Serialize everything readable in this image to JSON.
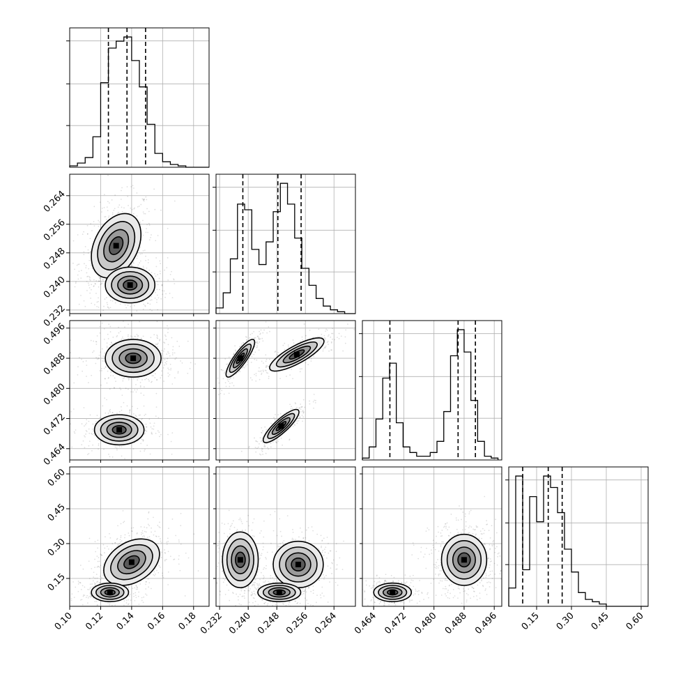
{
  "chart_data": {
    "type": "scatter",
    "kind": "corner-plot",
    "grid": true,
    "params": [
      {
        "id": "p0",
        "range": [
          0.1,
          0.19
        ],
        "ticks": [
          0.1,
          0.12,
          0.14,
          0.16,
          0.18
        ],
        "tick_labels": [
          "0.10",
          "0.12",
          "0.14",
          "0.16",
          "0.18"
        ],
        "quantiles": [
          0.125,
          0.137,
          0.149
        ]
      },
      {
        "id": "p1",
        "range": [
          0.231,
          0.27
        ],
        "ticks": [
          0.232,
          0.24,
          0.248,
          0.256,
          0.264
        ],
        "tick_labels": [
          "0.232",
          "0.240",
          "0.248",
          "0.256",
          "0.264"
        ],
        "quantiles": [
          0.2385,
          0.2483,
          0.2548
        ]
      },
      {
        "id": "p2",
        "range": [
          0.461,
          0.498
        ],
        "ticks": [
          0.464,
          0.472,
          0.48,
          0.488,
          0.496
        ],
        "tick_labels": [
          "0.464",
          "0.472",
          "0.480",
          "0.488",
          "0.496"
        ],
        "quantiles": [
          0.4683,
          0.4864,
          0.491
        ]
      },
      {
        "id": "p3",
        "range": [
          0.03,
          0.63
        ],
        "ticks": [
          0.15,
          0.3,
          0.45,
          0.6
        ],
        "tick_labels": [
          "0.15",
          "0.30",
          "0.45",
          "0.60"
        ],
        "quantiles": [
          0.09,
          0.2,
          0.26
        ]
      }
    ],
    "histograms": [
      {
        "param": 0,
        "bins": [
          0.1,
          0.105,
          0.11,
          0.115,
          0.12,
          0.125,
          0.13,
          0.135,
          0.14,
          0.145,
          0.15,
          0.155,
          0.16,
          0.165,
          0.17,
          0.175,
          0.18,
          0.185,
          0.19
        ],
        "counts": [
          1,
          3,
          7,
          22,
          61,
          86,
          91,
          94,
          77,
          58,
          31,
          10,
          4,
          2,
          1,
          0,
          0,
          0
        ]
      },
      {
        "param": 1,
        "bins": [
          0.231,
          0.233,
          0.235,
          0.237,
          0.239,
          0.241,
          0.243,
          0.245,
          0.247,
          0.249,
          0.251,
          0.253,
          0.255,
          0.257,
          0.259,
          0.261,
          0.263,
          0.265,
          0.267,
          0.269,
          0.27
        ],
        "counts": [
          3,
          11,
          29,
          58,
          55,
          34,
          26,
          38,
          54,
          69,
          58,
          40,
          24,
          15,
          8,
          4,
          2,
          1,
          0,
          0
        ]
      },
      {
        "param": 2,
        "bins": [
          0.461,
          0.4628,
          0.4646,
          0.4664,
          0.4682,
          0.47,
          0.4718,
          0.4736,
          0.4754,
          0.4772,
          0.479,
          0.4808,
          0.4826,
          0.4844,
          0.4862,
          0.488,
          0.4898,
          0.4916,
          0.4934,
          0.4952,
          0.497
        ],
        "counts": [
          1,
          7,
          22,
          44,
          52,
          20,
          7,
          4,
          2,
          2,
          4,
          10,
          26,
          56,
          70,
          58,
          32,
          10,
          2,
          1
        ]
      },
      {
        "param": 3,
        "bins": [
          0.03,
          0.06,
          0.09,
          0.12,
          0.15,
          0.18,
          0.21,
          0.24,
          0.27,
          0.3,
          0.33,
          0.36,
          0.39,
          0.42,
          0.45,
          0.48,
          0.51,
          0.54,
          0.57,
          0.6,
          0.63
        ],
        "counts": [
          8,
          57,
          16,
          48,
          37,
          57,
          52,
          41,
          25,
          15,
          6,
          3,
          2,
          1,
          0,
          0,
          0,
          0,
          0,
          0
        ]
      }
    ],
    "pairs": [
      {
        "x": 0,
        "y": 1,
        "modes": [
          {
            "mx": 0.13,
            "my": 0.25,
            "sx": 0.008,
            "sy": 0.0045,
            "rho": 0.35,
            "w": 0.6
          },
          {
            "mx": 0.139,
            "my": 0.239,
            "sx": 0.008,
            "sy": 0.0025,
            "rho": 0.0,
            "w": 0.4
          }
        ]
      },
      {
        "x": 0,
        "y": 2,
        "modes": [
          {
            "mx": 0.141,
            "my": 0.488,
            "sx": 0.009,
            "sy": 0.0025,
            "rho": 0.0,
            "w": 0.62
          },
          {
            "mx": 0.132,
            "my": 0.469,
            "sx": 0.008,
            "sy": 0.002,
            "rho": 0.0,
            "w": 0.38
          }
        ]
      },
      {
        "x": 1,
        "y": 2,
        "modes": [
          {
            "mx": 0.2378,
            "my": 0.488,
            "sx": 0.002,
            "sy": 0.0025,
            "rho": 0.85,
            "w": 0.33
          },
          {
            "mx": 0.2536,
            "my": 0.489,
            "sx": 0.0038,
            "sy": 0.0022,
            "rho": 0.8,
            "w": 0.35
          },
          {
            "mx": 0.2492,
            "my": 0.47,
            "sx": 0.0025,
            "sy": 0.0022,
            "rho": 0.85,
            "w": 0.32
          }
        ]
      },
      {
        "x": 0,
        "y": 3,
        "modes": [
          {
            "mx": 0.14,
            "my": 0.22,
            "sx": 0.009,
            "sy": 0.05,
            "rho": 0.35,
            "w": 0.68
          },
          {
            "mx": 0.126,
            "my": 0.09,
            "sx": 0.006,
            "sy": 0.02,
            "rho": 0.0,
            "w": 0.32
          }
        ]
      },
      {
        "x": 1,
        "y": 3,
        "modes": [
          {
            "mx": 0.2378,
            "my": 0.23,
            "sx": 0.0025,
            "sy": 0.06,
            "rho": 0.0,
            "w": 0.33
          },
          {
            "mx": 0.254,
            "my": 0.21,
            "sx": 0.0035,
            "sy": 0.05,
            "rho": 0.0,
            "w": 0.35
          },
          {
            "mx": 0.2487,
            "my": 0.09,
            "sx": 0.003,
            "sy": 0.02,
            "rho": 0.0,
            "w": 0.32
          }
        ]
      },
      {
        "x": 2,
        "y": 3,
        "modes": [
          {
            "mx": 0.488,
            "my": 0.23,
            "sx": 0.003,
            "sy": 0.055,
            "rho": 0.0,
            "w": 0.68
          },
          {
            "mx": 0.469,
            "my": 0.09,
            "sx": 0.0025,
            "sy": 0.02,
            "rho": 0.0,
            "w": 0.32
          }
        ]
      }
    ]
  }
}
